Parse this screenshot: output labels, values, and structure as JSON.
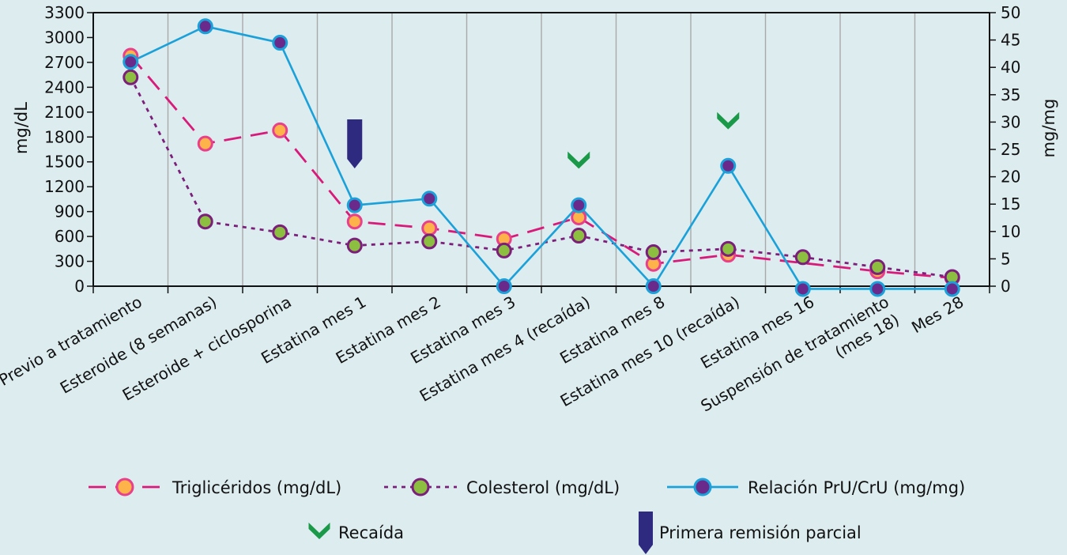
{
  "chart_data": {
    "type": "line",
    "categories": [
      "Previo a tratamiento",
      "Esteroide (8 semanas)",
      "Esteroide + ciclosporina",
      "Estatina mes 1",
      "Estatina mes 2",
      "Estatina mes 3",
      "Estatina mes 4 (recaída)",
      "Estatina mes 8",
      "Estatina mes 10 (recaída)",
      "Estatina mes 16",
      "Suspensión de tratamiento (mes 18)",
      "Mes 28"
    ],
    "category_lines": [
      [
        "Previo a tratamiento"
      ],
      [
        "Esteroide (8 semanas)"
      ],
      [
        "Esteroide + ciclosporina"
      ],
      [
        "Estatina mes 1"
      ],
      [
        "Estatina mes 2"
      ],
      [
        "Estatina mes 3"
      ],
      [
        "Estatina mes 4 (recaída)"
      ],
      [
        "Estatina mes 8"
      ],
      [
        "Estatina mes 10 (recaída)"
      ],
      [
        "Estatina mes 16"
      ],
      [
        "Suspensión de tratamiento",
        "(mes 18)"
      ],
      [
        "Mes 28"
      ]
    ],
    "ylabel": "mg/dL",
    "y2label": "mg/mg",
    "ylim": [
      0,
      3300
    ],
    "y2lim": [
      0,
      50
    ],
    "yticks": [
      0,
      300,
      600,
      900,
      1200,
      1500,
      1800,
      2100,
      2400,
      2700,
      3000,
      3300
    ],
    "y2ticks": [
      0,
      5,
      10,
      15,
      20,
      25,
      30,
      35,
      40,
      45,
      50
    ],
    "series": [
      {
        "name": "Triglicéridos (mg/dL)",
        "axis": "left",
        "line_color": "#d81b7a",
        "marker_fill": "#fdb34a",
        "marker_stroke": "#e8408a",
        "dash": "dashed",
        "values": [
          2780,
          1720,
          1880,
          780,
          700,
          570,
          830,
          270,
          380,
          null,
          180,
          100
        ]
      },
      {
        "name": "Colesterol (mg/dL)",
        "axis": "left",
        "line_color": "#7b1f7a",
        "marker_fill": "#8cbf3f",
        "marker_stroke": "#7b1f7a",
        "dash": "dotted",
        "values": [
          2520,
          780,
          650,
          490,
          540,
          430,
          610,
          410,
          450,
          350,
          230,
          110
        ]
      },
      {
        "name": "Relación PrU/CrU (mg/mg)",
        "axis": "right",
        "line_color": "#1ba1d9",
        "marker_fill": "#6a2a8c",
        "marker_stroke": "#1ba1d9",
        "dash": "solid",
        "values": [
          41,
          47.5,
          44.5,
          14.8,
          16,
          0,
          14.8,
          0,
          22,
          -0.5,
          -0.5,
          -0.5
        ]
      }
    ],
    "annotations": [
      {
        "type": "flag",
        "category_index": 3,
        "label": "Primera remisión parcial"
      },
      {
        "type": "check",
        "category_index": 6,
        "label": "Recaída"
      },
      {
        "type": "check",
        "category_index": 8,
        "label": "Recaída"
      }
    ],
    "legend": {
      "items": [
        "Triglicéridos (mg/dL)",
        "Colesterol (mg/dL)",
        "Relación PrU/CrU (mg/mg)"
      ],
      "recaida": "Recaída",
      "remision": "Primera remisión parcial"
    },
    "colors": {
      "background": "#ddecef",
      "grid": "#a9a9a9",
      "check": "#1a9a49",
      "flag": "#2e2a80"
    }
  }
}
